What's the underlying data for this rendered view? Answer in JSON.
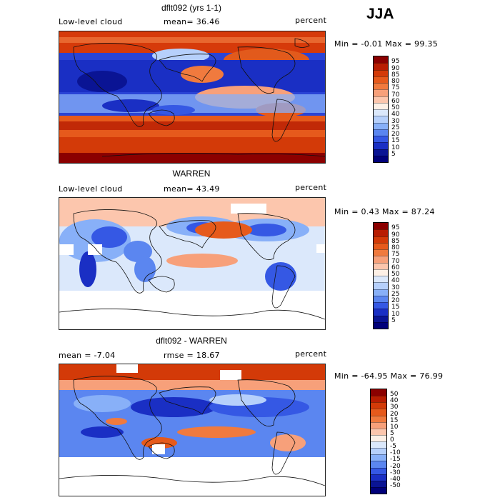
{
  "season": "JJA",
  "panels": [
    {
      "title": "dflt092 (yrs 1-1)",
      "left_label": "Low-level cloud",
      "center_label": "mean=  36.46",
      "right_label": "percent",
      "range_text": "Min =  -0.01 Max =  99.35",
      "colorbar": {
        "levels": [
          "95",
          "90",
          "85",
          "80",
          "75",
          "70",
          "60",
          "50",
          "40",
          "30",
          "25",
          "20",
          "15",
          "10",
          "5"
        ],
        "colors": [
          "#8b0000",
          "#b81d02",
          "#d33a08",
          "#e65a1c",
          "#f07a3e",
          "#f7a07a",
          "#fcc6ad",
          "#fdf0e6",
          "#dbe8fb",
          "#b6d0fb",
          "#88b0f8",
          "#5b86f0",
          "#3558e4",
          "#1a2fc4",
          "#0a1494",
          "#00007a"
        ]
      },
      "map_style": "model"
    },
    {
      "title": "WARREN",
      "left_label": "Low-level cloud",
      "center_label": "mean=  43.49",
      "right_label": "percent",
      "range_text": "Min =   0.43 Max =  87.24",
      "colorbar": {
        "levels": [
          "95",
          "90",
          "85",
          "80",
          "75",
          "70",
          "60",
          "50",
          "40",
          "30",
          "25",
          "20",
          "15",
          "10",
          "5"
        ],
        "colors": [
          "#8b0000",
          "#b81d02",
          "#d33a08",
          "#e65a1c",
          "#f07a3e",
          "#f7a07a",
          "#fcc6ad",
          "#fdf0e6",
          "#dbe8fb",
          "#b6d0fb",
          "#88b0f8",
          "#5b86f0",
          "#3558e4",
          "#1a2fc4",
          "#0a1494",
          "#00007a"
        ]
      },
      "map_style": "obs"
    },
    {
      "title": "dflt092 - WARREN",
      "left_label": "mean =   -7.04",
      "center_label": "rmse =   18.67",
      "right_label": "percent",
      "range_text": "Min = -64.95 Max =  76.99",
      "colorbar": {
        "levels": [
          "50",
          "40",
          "30",
          "20",
          "15",
          "10",
          "5",
          "0",
          "-5",
          "-10",
          "-15",
          "-20",
          "-30",
          "-40",
          "-50"
        ],
        "colors": [
          "#8b0000",
          "#b81d02",
          "#d33a08",
          "#e65a1c",
          "#f07a3e",
          "#f7a07a",
          "#fcc6ad",
          "#fdf0e6",
          "#dbe8fb",
          "#b6d0fb",
          "#88b0f8",
          "#5b86f0",
          "#3558e4",
          "#1a2fc4",
          "#0a1494",
          "#00007a"
        ]
      },
      "map_style": "diff"
    }
  ]
}
